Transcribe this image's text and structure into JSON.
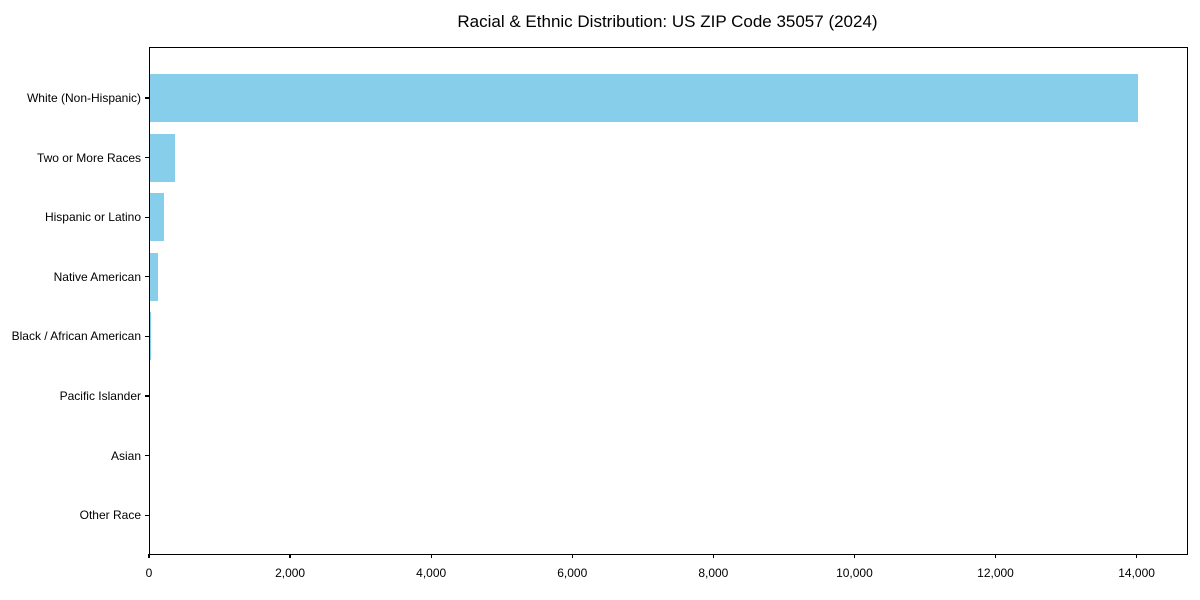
{
  "page": {
    "background": "#ffffff"
  },
  "chart_data": {
    "type": "bar",
    "orientation": "horizontal",
    "title": "Racial & Ethnic Distribution: US ZIP Code 35057 (2024)",
    "categories": [
      "White (Non-Hispanic)",
      "Two or More Races",
      "Hispanic or Latino",
      "Native American",
      "Black / African American",
      "Pacific Islander",
      "Asian",
      "Other Race"
    ],
    "values": [
      14000,
      350,
      200,
      115,
      15,
      0,
      0,
      0
    ],
    "xlabel": "",
    "ylabel": "",
    "xlim": [
      0,
      14700
    ],
    "x_ticks": [
      0,
      2000,
      4000,
      6000,
      8000,
      10000,
      12000,
      14000
    ],
    "x_tick_labels": [
      "0",
      "2,000",
      "4,000",
      "6,000",
      "8,000",
      "10,000",
      "12,000",
      "14,000"
    ],
    "bar_color": "#87CEEB",
    "axis_color": "#000000",
    "text_color": "#000000",
    "grid": false,
    "legend": false
  }
}
